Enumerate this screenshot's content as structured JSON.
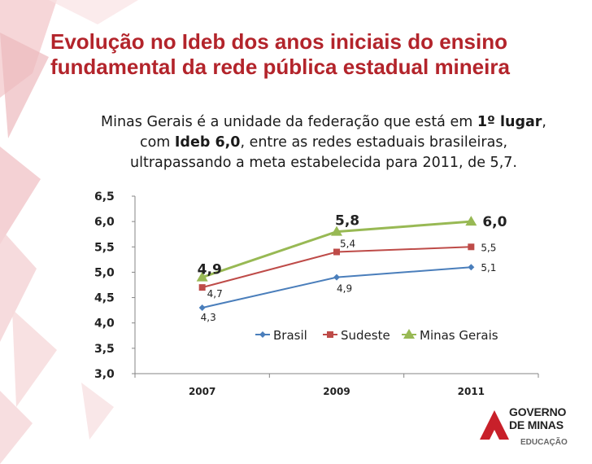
{
  "title_line1": "Evolução no Ideb dos anos iniciais do ensino",
  "title_line2": "fundamental da rede pública estadual mineira",
  "subtitle": {
    "p1": "Minas Gerais é a unidade da federação que está em ",
    "b1": "1º lugar",
    "p2": ",",
    "p3": "com ",
    "b2": "Ideb 6,0",
    "p4": ", entre as redes estaduais brasileiras,",
    "p5": "ultrapassando a meta estabelecida para 2011, de 5,7."
  },
  "colors": {
    "title": "#b3242b",
    "brasil": "#4a7ebb",
    "sudeste": "#be4b48",
    "minas": "#98b954",
    "accent_red": "#c8202a"
  },
  "chart_data": {
    "type": "line",
    "categories": [
      "2007",
      "2009",
      "2011"
    ],
    "ylim": [
      3.0,
      6.5
    ],
    "yticks": [
      "3,0",
      "3,5",
      "4,0",
      "4,5",
      "5,0",
      "5,5",
      "6,0",
      "6,5"
    ],
    "grid": false,
    "legend_position": "inside-right",
    "series": [
      {
        "name": "Brasil",
        "values": [
          4.3,
          4.9,
          5.1
        ],
        "labels": [
          "4,3",
          "4,9",
          "5,1"
        ],
        "marker": "diamond"
      },
      {
        "name": "Sudeste",
        "values": [
          4.7,
          5.4,
          5.5
        ],
        "labels": [
          "4,7",
          "5,4",
          "5,5"
        ],
        "marker": "square"
      },
      {
        "name": "Minas Gerais",
        "values": [
          4.9,
          5.8,
          6.0
        ],
        "labels": [
          "4,9",
          "5,8",
          "6,0"
        ],
        "marker": "triangle"
      }
    ]
  },
  "logo": {
    "line1": "GOVERNO",
    "line2": "DE MINAS",
    "dept": "EDUCAÇÃO",
    "icon": "governo-de-minas-triangle-icon"
  }
}
